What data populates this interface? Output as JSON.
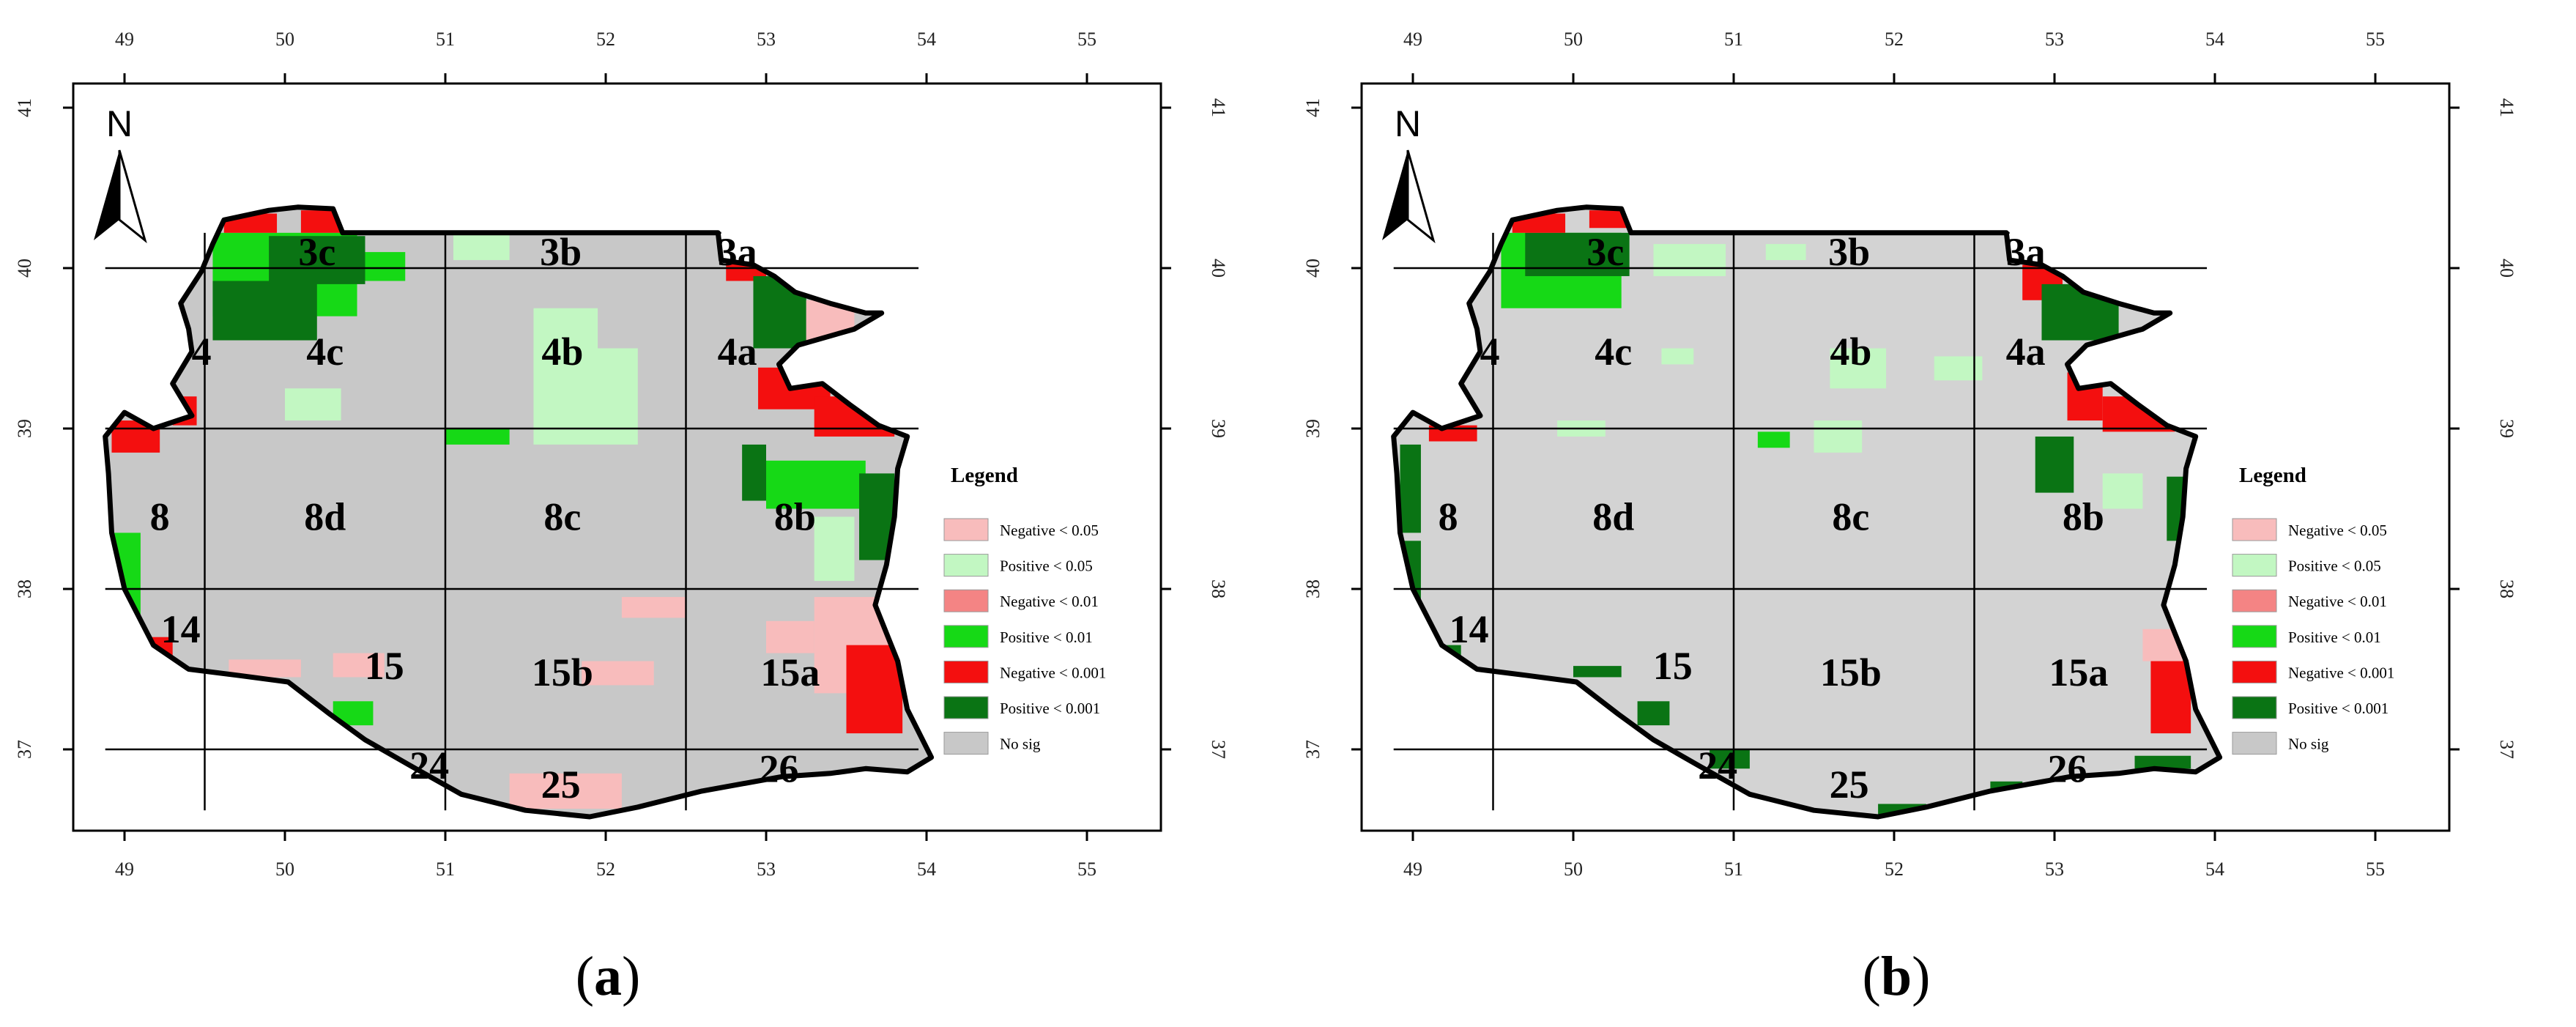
{
  "panels": [
    {
      "id": "a",
      "caption_open": "(",
      "caption_letter": "a",
      "caption_close": ")",
      "sig_style": "coast"
    },
    {
      "id": "b",
      "caption_open": "(",
      "caption_letter": "b",
      "caption_close": ")",
      "sig_style": "sparse"
    }
  ],
  "x_ticks": [
    "49",
    "50",
    "51",
    "52",
    "53",
    "54",
    "55"
  ],
  "y_ticks": [
    "41",
    "40",
    "39",
    "38",
    "37"
  ],
  "north_label": "N",
  "regions": [
    "3c",
    "3b",
    "3a",
    "4",
    "4c",
    "4b",
    "4a",
    "8",
    "8d",
    "8c",
    "8b",
    "14",
    "15",
    "15b",
    "15a",
    "24",
    "25",
    "26"
  ],
  "legend": {
    "title": "Legend",
    "items": [
      {
        "label": "Negative < 0.05",
        "color": "#f8bcbc"
      },
      {
        "label": "Positive < 0.05",
        "color": "#c2f7c2"
      },
      {
        "label": "Negative < 0.01",
        "color": "#f48484"
      },
      {
        "label": "Positive < 0.01",
        "color": "#16d916"
      },
      {
        "label": "Negative < 0.001",
        "color": "#f40f0f"
      },
      {
        "label": "Positive < 0.001",
        "color": "#0a7414"
      },
      {
        "label": "No sig",
        "color": "#c8c8c8"
      }
    ]
  },
  "colors": {
    "nosig_a": "#c8c8c8",
    "nosig_b": "#d3d3d3",
    "dark_teal": "#0b6b52"
  }
}
